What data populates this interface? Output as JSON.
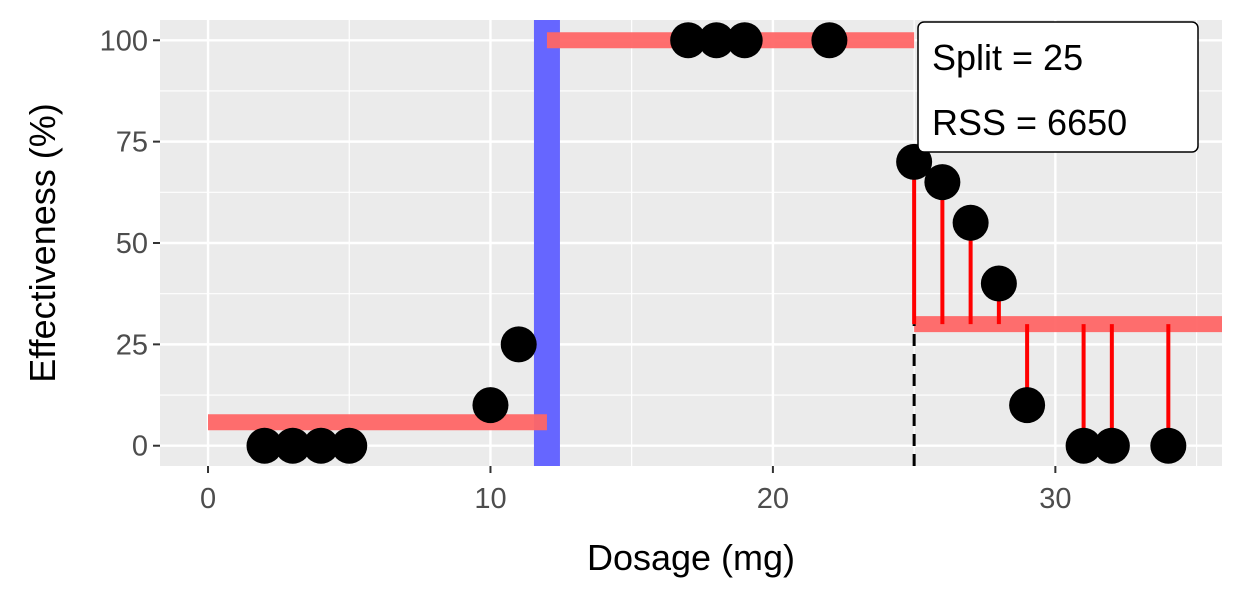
{
  "chart_data": {
    "type": "scatter",
    "xlabel": "Dosage (mg)",
    "ylabel": "Effectiveness (%)",
    "xlim": [
      -1.7,
      35.9
    ],
    "ylim": [
      -5,
      105
    ],
    "x_ticks": [
      0,
      10,
      20,
      30
    ],
    "y_ticks": [
      0,
      25,
      50,
      75,
      100
    ],
    "grid": true,
    "points": [
      {
        "x": 2,
        "y": 0
      },
      {
        "x": 3,
        "y": 0
      },
      {
        "x": 4,
        "y": 0
      },
      {
        "x": 5,
        "y": 0
      },
      {
        "x": 10,
        "y": 10
      },
      {
        "x": 11,
        "y": 25
      },
      {
        "x": 17,
        "y": 100
      },
      {
        "x": 18,
        "y": 100
      },
      {
        "x": 19,
        "y": 100
      },
      {
        "x": 22,
        "y": 100
      },
      {
        "x": 25,
        "y": 70
      },
      {
        "x": 26,
        "y": 65
      },
      {
        "x": 27,
        "y": 55
      },
      {
        "x": 28,
        "y": 40
      },
      {
        "x": 29,
        "y": 10
      },
      {
        "x": 31,
        "y": 0
      },
      {
        "x": 32,
        "y": 0
      },
      {
        "x": 34,
        "y": 0
      }
    ],
    "fit_segments": [
      {
        "x_start": 0,
        "x_end": 12,
        "y": 5.8
      },
      {
        "x_start": 12,
        "x_end": 25,
        "y": 100
      },
      {
        "x_start": 25,
        "x_end": 35.9,
        "y": 30
      }
    ],
    "residuals": [
      {
        "x": 25,
        "y_point": 70,
        "y_fit": 30
      },
      {
        "x": 26,
        "y_point": 65,
        "y_fit": 30
      },
      {
        "x": 27,
        "y_point": 55,
        "y_fit": 30
      },
      {
        "x": 28,
        "y_point": 40,
        "y_fit": 30
      },
      {
        "x": 29,
        "y_point": 10,
        "y_fit": 30
      },
      {
        "x": 31,
        "y_point": 0,
        "y_fit": 30
      },
      {
        "x": 32,
        "y_point": 0,
        "y_fit": 30
      },
      {
        "x": 34,
        "y_point": 0,
        "y_fit": 30
      }
    ],
    "blue_split_x": 12,
    "split_line": {
      "x": 25,
      "y_start": -5,
      "y_end": 30
    },
    "annotation": {
      "lines": [
        "Split = 25",
        "RSS = 6650"
      ]
    },
    "colors": {
      "panel": "#ebebeb",
      "grid": "#ffffff",
      "points": "#000000",
      "fit": "#ff6666",
      "residual": "#ff0000",
      "blue": "#6666ff",
      "tick_label": "#4d4d4d"
    }
  }
}
